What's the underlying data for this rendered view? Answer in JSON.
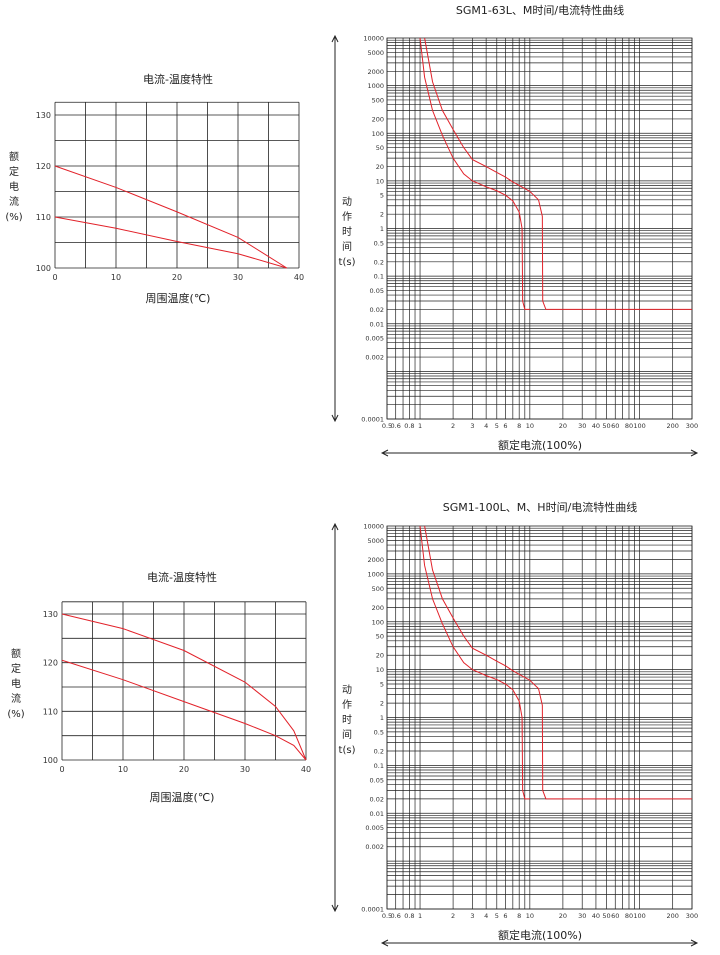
{
  "colors": {
    "curve": "#e2222a",
    "grid": "#222222",
    "text": "#222222"
  },
  "chart_data": [
    {
      "type": "line",
      "title": "电流-温度特性",
      "xlabel": "周围温度(℃)",
      "ylabel": "额定电流(%)",
      "ylabel_chars": [
        "额",
        "定",
        "电",
        "流",
        "(%)"
      ],
      "xlim": [
        0,
        40
      ],
      "ylim": [
        100,
        130
      ],
      "x_ticks": [
        "0",
        "10",
        "20",
        "30",
        "40"
      ],
      "y_ticks": [
        "100",
        "110",
        "120",
        "130"
      ],
      "grid": true,
      "series": [
        {
          "x": [
            0,
            10,
            20,
            30,
            38
          ],
          "values": [
            120,
            115.8,
            111,
            106,
            100
          ]
        },
        {
          "x": [
            0,
            10,
            20,
            30,
            38
          ],
          "values": [
            110,
            107.8,
            105.2,
            102.8,
            100
          ]
        }
      ]
    },
    {
      "type": "line",
      "title": "SGM1-63L、M时间/电流特性曲线",
      "xlabel": "额定电流(100%)",
      "ylabel": "动作时间t(s)",
      "ylabel_chars": [
        "动",
        "作",
        "时",
        "间",
        "t(s)"
      ],
      "xscale": "log",
      "yscale": "log",
      "xlim": [
        0.5,
        300
      ],
      "ylim": [
        0.0001,
        10000
      ],
      "x_ticks": [
        "0.5",
        "0.6",
        "0.8",
        "1",
        "2",
        "3",
        "4",
        "5",
        "6",
        "8",
        "10",
        "20",
        "30",
        "40",
        "50",
        "60",
        "80",
        "100",
        "200",
        "300"
      ],
      "y_ticks": [
        "10000",
        "5000",
        "2000",
        "1000",
        "500",
        "200",
        "100",
        "50",
        "20",
        "10",
        "5",
        "2",
        "1",
        "0.5",
        "0.2",
        "0.1",
        "0.05",
        "0.02",
        "0.01",
        "0.005",
        "0.002",
        "0.0001"
      ],
      "grid": true,
      "series": [
        {
          "x": [
            1,
            1.1,
            1.3,
            1.6,
            2,
            2.5,
            3,
            4,
            5,
            6,
            7,
            8,
            8.5,
            8.6,
            9,
            10
          ],
          "values": [
            10000,
            1500,
            300,
            90,
            30,
            14,
            10,
            7.5,
            6.2,
            5,
            3.8,
            2.2,
            1,
            0.03,
            0.02,
            0.02
          ]
        },
        {
          "x": [
            1.1,
            1.3,
            1.6,
            2,
            2.5,
            3,
            4,
            5,
            6,
            7,
            8,
            10,
            12,
            13,
            13.1,
            14,
            20,
            50,
            100,
            300
          ],
          "values": [
            10000,
            1200,
            300,
            120,
            50,
            28,
            20,
            15,
            12,
            9.5,
            8,
            6,
            4,
            1.8,
            0.03,
            0.02,
            0.02,
            0.02,
            0.02,
            0.02
          ]
        }
      ]
    },
    {
      "type": "line",
      "title": "电流-温度特性",
      "xlabel": "周围温度(℃)",
      "ylabel": "额定电流(%)",
      "ylabel_chars": [
        "额",
        "定",
        "电",
        "流",
        "(%)"
      ],
      "xlim": [
        0,
        40
      ],
      "ylim": [
        100,
        130
      ],
      "x_ticks": [
        "0",
        "10",
        "20",
        "30",
        "40"
      ],
      "y_ticks": [
        "100",
        "110",
        "120",
        "130"
      ],
      "grid": true,
      "series": [
        {
          "x": [
            0,
            10,
            20,
            30,
            35,
            38,
            40
          ],
          "values": [
            130,
            127,
            122.5,
            116,
            111,
            106,
            100
          ]
        },
        {
          "x": [
            0,
            10,
            20,
            30,
            35,
            38,
            40
          ],
          "values": [
            120.5,
            116.5,
            112,
            107.5,
            105,
            103,
            100
          ]
        }
      ]
    },
    {
      "type": "line",
      "title": "SGM1-100L、M、H时间/电流特性曲线",
      "xlabel": "额定电流(100%)",
      "ylabel": "动作时间t(s)",
      "ylabel_chars": [
        "动",
        "作",
        "时",
        "间",
        "t(s)"
      ],
      "xscale": "log",
      "yscale": "log",
      "xlim": [
        0.5,
        300
      ],
      "ylim": [
        0.0001,
        10000
      ],
      "x_ticks": [
        "0.5",
        "0.6",
        "0.8",
        "1",
        "2",
        "3",
        "4",
        "5",
        "6",
        "8",
        "10",
        "20",
        "30",
        "40",
        "50",
        "60",
        "80",
        "100",
        "200",
        "300"
      ],
      "y_ticks": [
        "10000",
        "5000",
        "2000",
        "1000",
        "500",
        "200",
        "100",
        "50",
        "20",
        "10",
        "5",
        "2",
        "1",
        "0.5",
        "0.2",
        "0.1",
        "0.05",
        "0.02",
        "0.01",
        "0.005",
        "0.002",
        "0.0001"
      ],
      "grid": true,
      "series": [
        {
          "x": [
            1,
            1.1,
            1.3,
            1.6,
            2,
            2.5,
            3,
            4,
            5,
            6,
            7,
            8,
            8.5,
            8.6,
            9,
            10
          ],
          "values": [
            10000,
            1500,
            300,
            90,
            30,
            14,
            10,
            7.5,
            6.2,
            5,
            3.8,
            2.2,
            1,
            0.03,
            0.02,
            0.02
          ]
        },
        {
          "x": [
            1.1,
            1.3,
            1.6,
            2,
            2.5,
            3,
            4,
            5,
            6,
            7,
            8,
            10,
            12,
            13,
            13.1,
            14,
            20,
            50,
            100,
            300
          ],
          "values": [
            10000,
            1200,
            300,
            120,
            50,
            28,
            20,
            15,
            12,
            9.5,
            8,
            6,
            4,
            1.8,
            0.03,
            0.02,
            0.02,
            0.02,
            0.02,
            0.02
          ]
        }
      ]
    }
  ]
}
